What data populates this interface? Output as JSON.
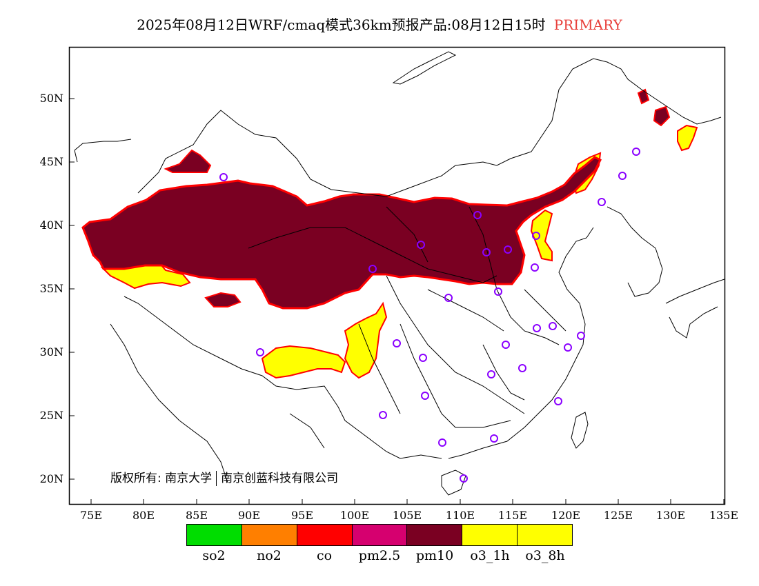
{
  "title": {
    "main": "2025年08月12日WRF/cmaq模式36km预报产品:08月12日15时",
    "status": "PRIMARY",
    "status_color": "#e8413c"
  },
  "map": {
    "lat_labels": [
      "50N",
      "45N",
      "40N",
      "35N",
      "30N",
      "25N",
      "20N"
    ],
    "lon_labels": [
      "75E",
      "80E",
      "85E",
      "90E",
      "95E",
      "100E",
      "105E",
      "110E",
      "115E",
      "120E",
      "125E",
      "130E",
      "135E"
    ],
    "lon_range": [
      73,
      135
    ],
    "lat_range": [
      18,
      54
    ],
    "copyright_left": "版权所有: 南京大学",
    "copyright_right": "南京创蓝科技有限公司"
  },
  "legend": [
    {
      "label": "so2",
      "color": "#00dd00"
    },
    {
      "label": "no2",
      "color": "#ff7f00"
    },
    {
      "label": "co",
      "color": "#ff0000"
    },
    {
      "label": "pm2.5",
      "color": "#d6006f"
    },
    {
      "label": "pm10",
      "color": "#7a0022"
    },
    {
      "label": "o3_1h",
      "color": "#ffff00"
    },
    {
      "label": "o3_8h",
      "color": "#ffff00"
    }
  ],
  "colors": {
    "pm10": "#7a0022",
    "o3": "#ffff00",
    "pm25": "#d6006f",
    "co": "#ff0000",
    "no2": "#ff7f00",
    "so2": "#00dd00",
    "station": "#8a00ff"
  }
}
